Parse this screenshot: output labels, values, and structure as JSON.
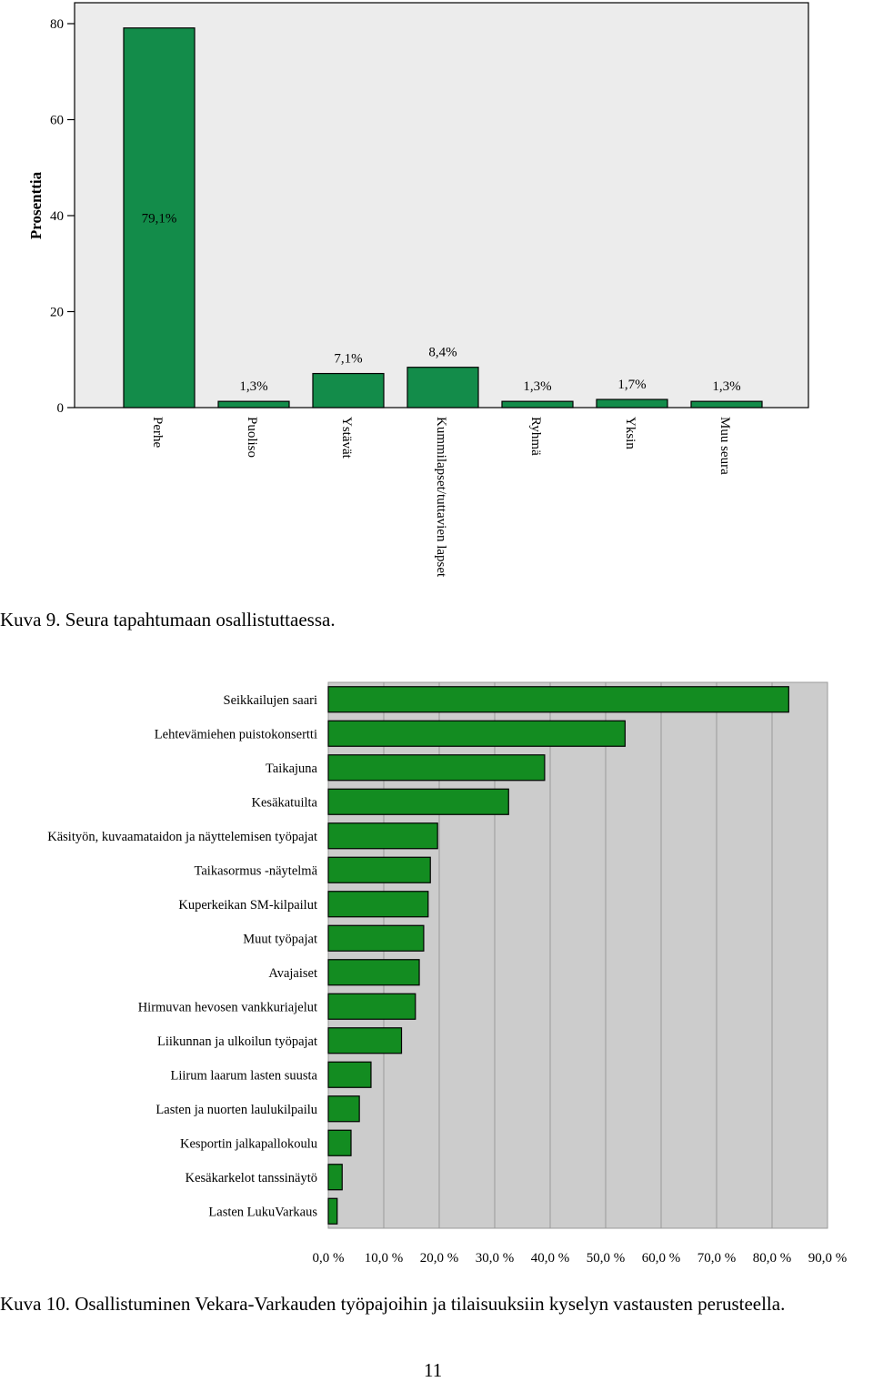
{
  "charts": {
    "chart1": {
      "ylabel": "Prosenttia"
    }
  },
  "captions": {
    "kuva9": "Kuva 9. Seura tapahtumaan osallistuttaessa.",
    "kuva10": "Kuva 10. Osallistuminen Vekara-Varkauden työpajoihin ja tilaisuuksiin kyselyn vastausten perusteella."
  },
  "page_number": "11",
  "colors": {
    "chart1_bar": "#138c4a",
    "chart1_plot_bg": "#ececec",
    "chart2_bar": "#138c21",
    "chart2_plot_bg": "#cccccc"
  },
  "chart_data": [
    {
      "type": "bar",
      "orientation": "vertical",
      "categories": [
        "Perhe",
        "Puoliso",
        "Ystävät",
        "Kummilapset/tuttavien lapset",
        "Ryhmä",
        "Yksin",
        "Muu seura"
      ],
      "values": [
        79.1,
        1.3,
        7.1,
        8.4,
        1.3,
        1.7,
        1.3
      ],
      "value_labels": [
        "79,1%",
        "1,3%",
        "7,1%",
        "8,4%",
        "1,3%",
        "1,7%",
        "1,3%"
      ],
      "ylabel": "Prosenttia",
      "ylim": [
        0,
        80
      ],
      "yticks": [
        "0",
        "20",
        "40",
        "60",
        "80"
      ],
      "grid": false
    },
    {
      "type": "bar",
      "orientation": "horizontal",
      "categories": [
        "Seikkailujen saari",
        "Lehtevämiehen puistokonsertti",
        "Taikajuna",
        "Kesäkatuilta",
        "Käsityön, kuvaamataidon ja näyttelemisen työpajat",
        "Taikasormus -näytelmä",
        "Kuperkeikan SM-kilpailut",
        "Muut työpajat",
        "Avajaiset",
        "Hirmuvan hevosen vankkuriajelut",
        "Liikunnan ja ulkoilun työpajat",
        "Liirum laarum lasten suusta",
        "Lasten ja nuorten laulukilpailu",
        "Kesportin jalkapallokoulu",
        "Kesäkarkelot tanssinäytö",
        "Lasten LukuVarkaus"
      ],
      "values": [
        83.0,
        53.5,
        39.0,
        32.5,
        19.7,
        18.4,
        18.0,
        17.2,
        16.4,
        15.7,
        13.2,
        7.7,
        5.6,
        4.1,
        2.5,
        1.6
      ],
      "xlim": [
        0,
        90
      ],
      "xticks": [
        "0,0 %",
        "10,0 %",
        "20,0 %",
        "30,0 %",
        "40,0 %",
        "50,0 %",
        "60,0 %",
        "70,0 %",
        "80,0 %",
        "90,0 %"
      ],
      "grid": true
    }
  ]
}
